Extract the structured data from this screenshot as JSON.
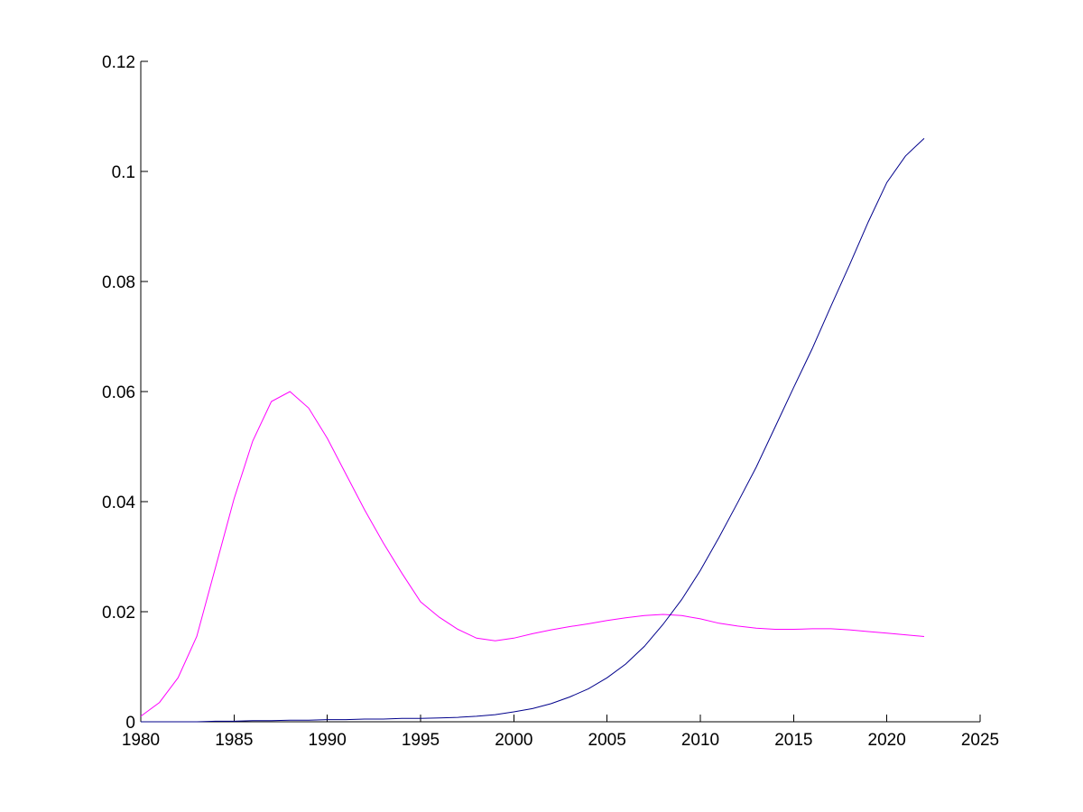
{
  "chart_data": {
    "type": "line",
    "title": "",
    "xlabel": "",
    "ylabel": "",
    "xlim": [
      1980,
      2025
    ],
    "ylim": [
      0,
      0.12
    ],
    "xticks": [
      "1980",
      "1985",
      "1990",
      "1995",
      "2000",
      "2005",
      "2010",
      "2015",
      "2020",
      "2025"
    ],
    "yticks": [
      "0",
      "0.02",
      "0.04",
      "0.06",
      "0.08",
      "0.1",
      "0.12"
    ],
    "grid": false,
    "legend": "none",
    "x": [
      1980,
      1981,
      1982,
      1983,
      1984,
      1985,
      1986,
      1987,
      1988,
      1989,
      1990,
      1991,
      1992,
      1993,
      1994,
      1995,
      1996,
      1997,
      1998,
      1999,
      2000,
      2001,
      2002,
      2003,
      2004,
      2005,
      2006,
      2007,
      2008,
      2009,
      2010,
      2011,
      2012,
      2013,
      2014,
      2015,
      2016,
      2017,
      2018,
      2019,
      2020,
      2021,
      2022
    ],
    "series": [
      {
        "color": "#ff00ff",
        "values": [
          0.001,
          0.0035,
          0.008,
          0.0155,
          0.028,
          0.0405,
          0.051,
          0.0582,
          0.06,
          0.057,
          0.0515,
          0.045,
          0.0385,
          0.0325,
          0.027,
          0.0218,
          0.019,
          0.0168,
          0.0152,
          0.0147,
          0.0152,
          0.016,
          0.0167,
          0.0173,
          0.0178,
          0.0184,
          0.0189,
          0.0193,
          0.0195,
          0.0193,
          0.0187,
          0.0179,
          0.0174,
          0.017,
          0.0168,
          0.0168,
          0.0169,
          0.0169,
          0.0167,
          0.0164,
          0.0161,
          0.0158,
          0.0155
        ]
      },
      {
        "color": "#00008b",
        "values": [
          0,
          0,
          0,
          0,
          0.0001,
          0.0001,
          0.0002,
          0.0002,
          0.0003,
          0.0003,
          0.0004,
          0.0004,
          0.0005,
          0.0005,
          0.0006,
          0.0006,
          0.0007,
          0.0008,
          0.001,
          0.0013,
          0.0018,
          0.0024,
          0.0033,
          0.0045,
          0.006,
          0.008,
          0.0105,
          0.0137,
          0.0177,
          0.0222,
          0.0275,
          0.0335,
          0.0398,
          0.0463,
          0.0535,
          0.0607,
          0.0678,
          0.0755,
          0.083,
          0.0908,
          0.098,
          0.1028,
          0.106
        ]
      }
    ]
  }
}
